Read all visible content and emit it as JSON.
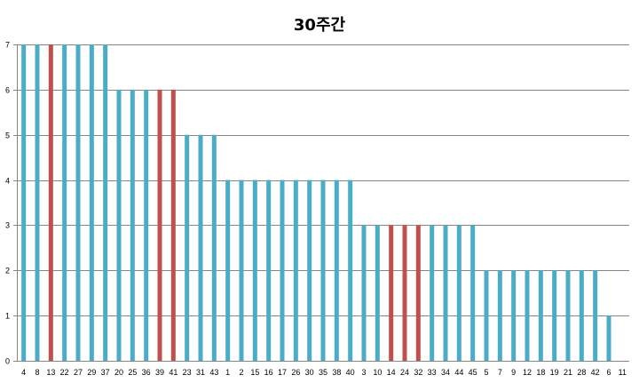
{
  "chart_data": {
    "type": "bar",
    "title": "30주간",
    "xlabel": "",
    "ylabel": "",
    "ylim": [
      0,
      7
    ],
    "yticks": [
      "0",
      "1",
      "2",
      "3",
      "4",
      "5",
      "6",
      "7"
    ],
    "grid": true,
    "legend": "none",
    "colors": {
      "default": "#4BACC6",
      "highlight": "#C0504D",
      "grid": "#868686",
      "axis": "#868686"
    },
    "categories": [
      "4",
      "8",
      "13",
      "22",
      "27",
      "29",
      "37",
      "20",
      "25",
      "36",
      "39",
      "41",
      "23",
      "31",
      "43",
      "1",
      "2",
      "15",
      "16",
      "17",
      "26",
      "30",
      "35",
      "38",
      "40",
      "3",
      "10",
      "14",
      "24",
      "32",
      "33",
      "34",
      "44",
      "45",
      "5",
      "7",
      "9",
      "12",
      "18",
      "19",
      "21",
      "28",
      "42",
      "6",
      "11"
    ],
    "values": [
      7,
      7,
      7,
      7,
      7,
      7,
      7,
      6,
      6,
      6,
      6,
      6,
      5,
      5,
      5,
      4,
      4,
      4,
      4,
      4,
      4,
      4,
      4,
      4,
      4,
      3,
      3,
      3,
      3,
      3,
      3,
      3,
      3,
      3,
      2,
      2,
      2,
      2,
      2,
      2,
      2,
      2,
      2,
      1,
      0
    ],
    "highlighted": [
      "13",
      "39",
      "41",
      "14",
      "24",
      "32"
    ]
  }
}
